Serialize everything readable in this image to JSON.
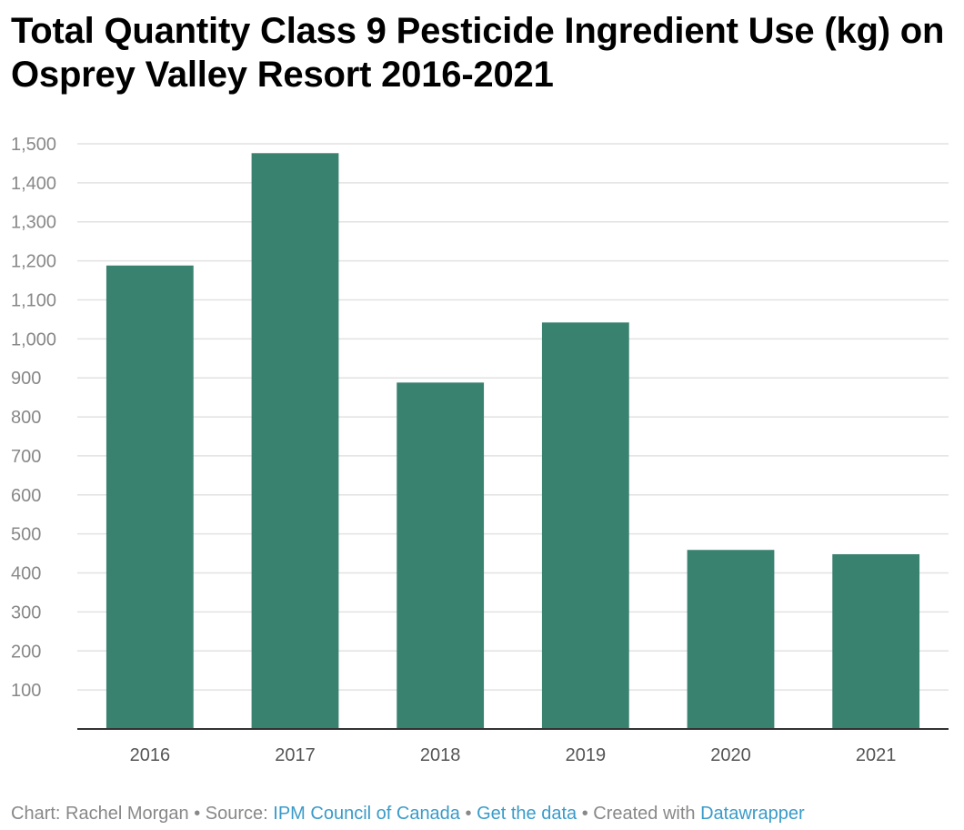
{
  "title": "Total Quantity Class 9 Pesticide Ingredient Use (kg) on Osprey Valley Resort 2016-2021",
  "chart_data": {
    "type": "bar",
    "title": "Total Quantity Class 9 Pesticide Ingredient Use (kg) on Osprey Valley Resort 2016-2021",
    "categories": [
      "2016",
      "2017",
      "2018",
      "2019",
      "2020",
      "2021"
    ],
    "values": [
      1188,
      1476,
      888,
      1042,
      459,
      448
    ],
    "xlabel": "",
    "ylabel": "",
    "ylim": [
      0,
      1500
    ],
    "yticks": [
      100,
      200,
      300,
      400,
      500,
      600,
      700,
      800,
      900,
      1000,
      1100,
      1200,
      1300,
      1400,
      1500
    ],
    "ytick_labels": [
      "100",
      "200",
      "300",
      "400",
      "500",
      "600",
      "700",
      "800",
      "900",
      "1,000",
      "1,100",
      "1,200",
      "1,300",
      "1,400",
      "1,500"
    ],
    "grid": true,
    "bar_color": "#3a8270",
    "grid_color": "#e2e2e2",
    "tick_color": "#888888",
    "axis_color": "#333333"
  },
  "footer": {
    "chart_label": "Chart: Rachel Morgan",
    "separator": " • ",
    "source_label": "Source: ",
    "source_link": "IPM Council of Canada",
    "data_link": "Get the data",
    "created_label": "Created with ",
    "tool_link": "Datawrapper"
  }
}
